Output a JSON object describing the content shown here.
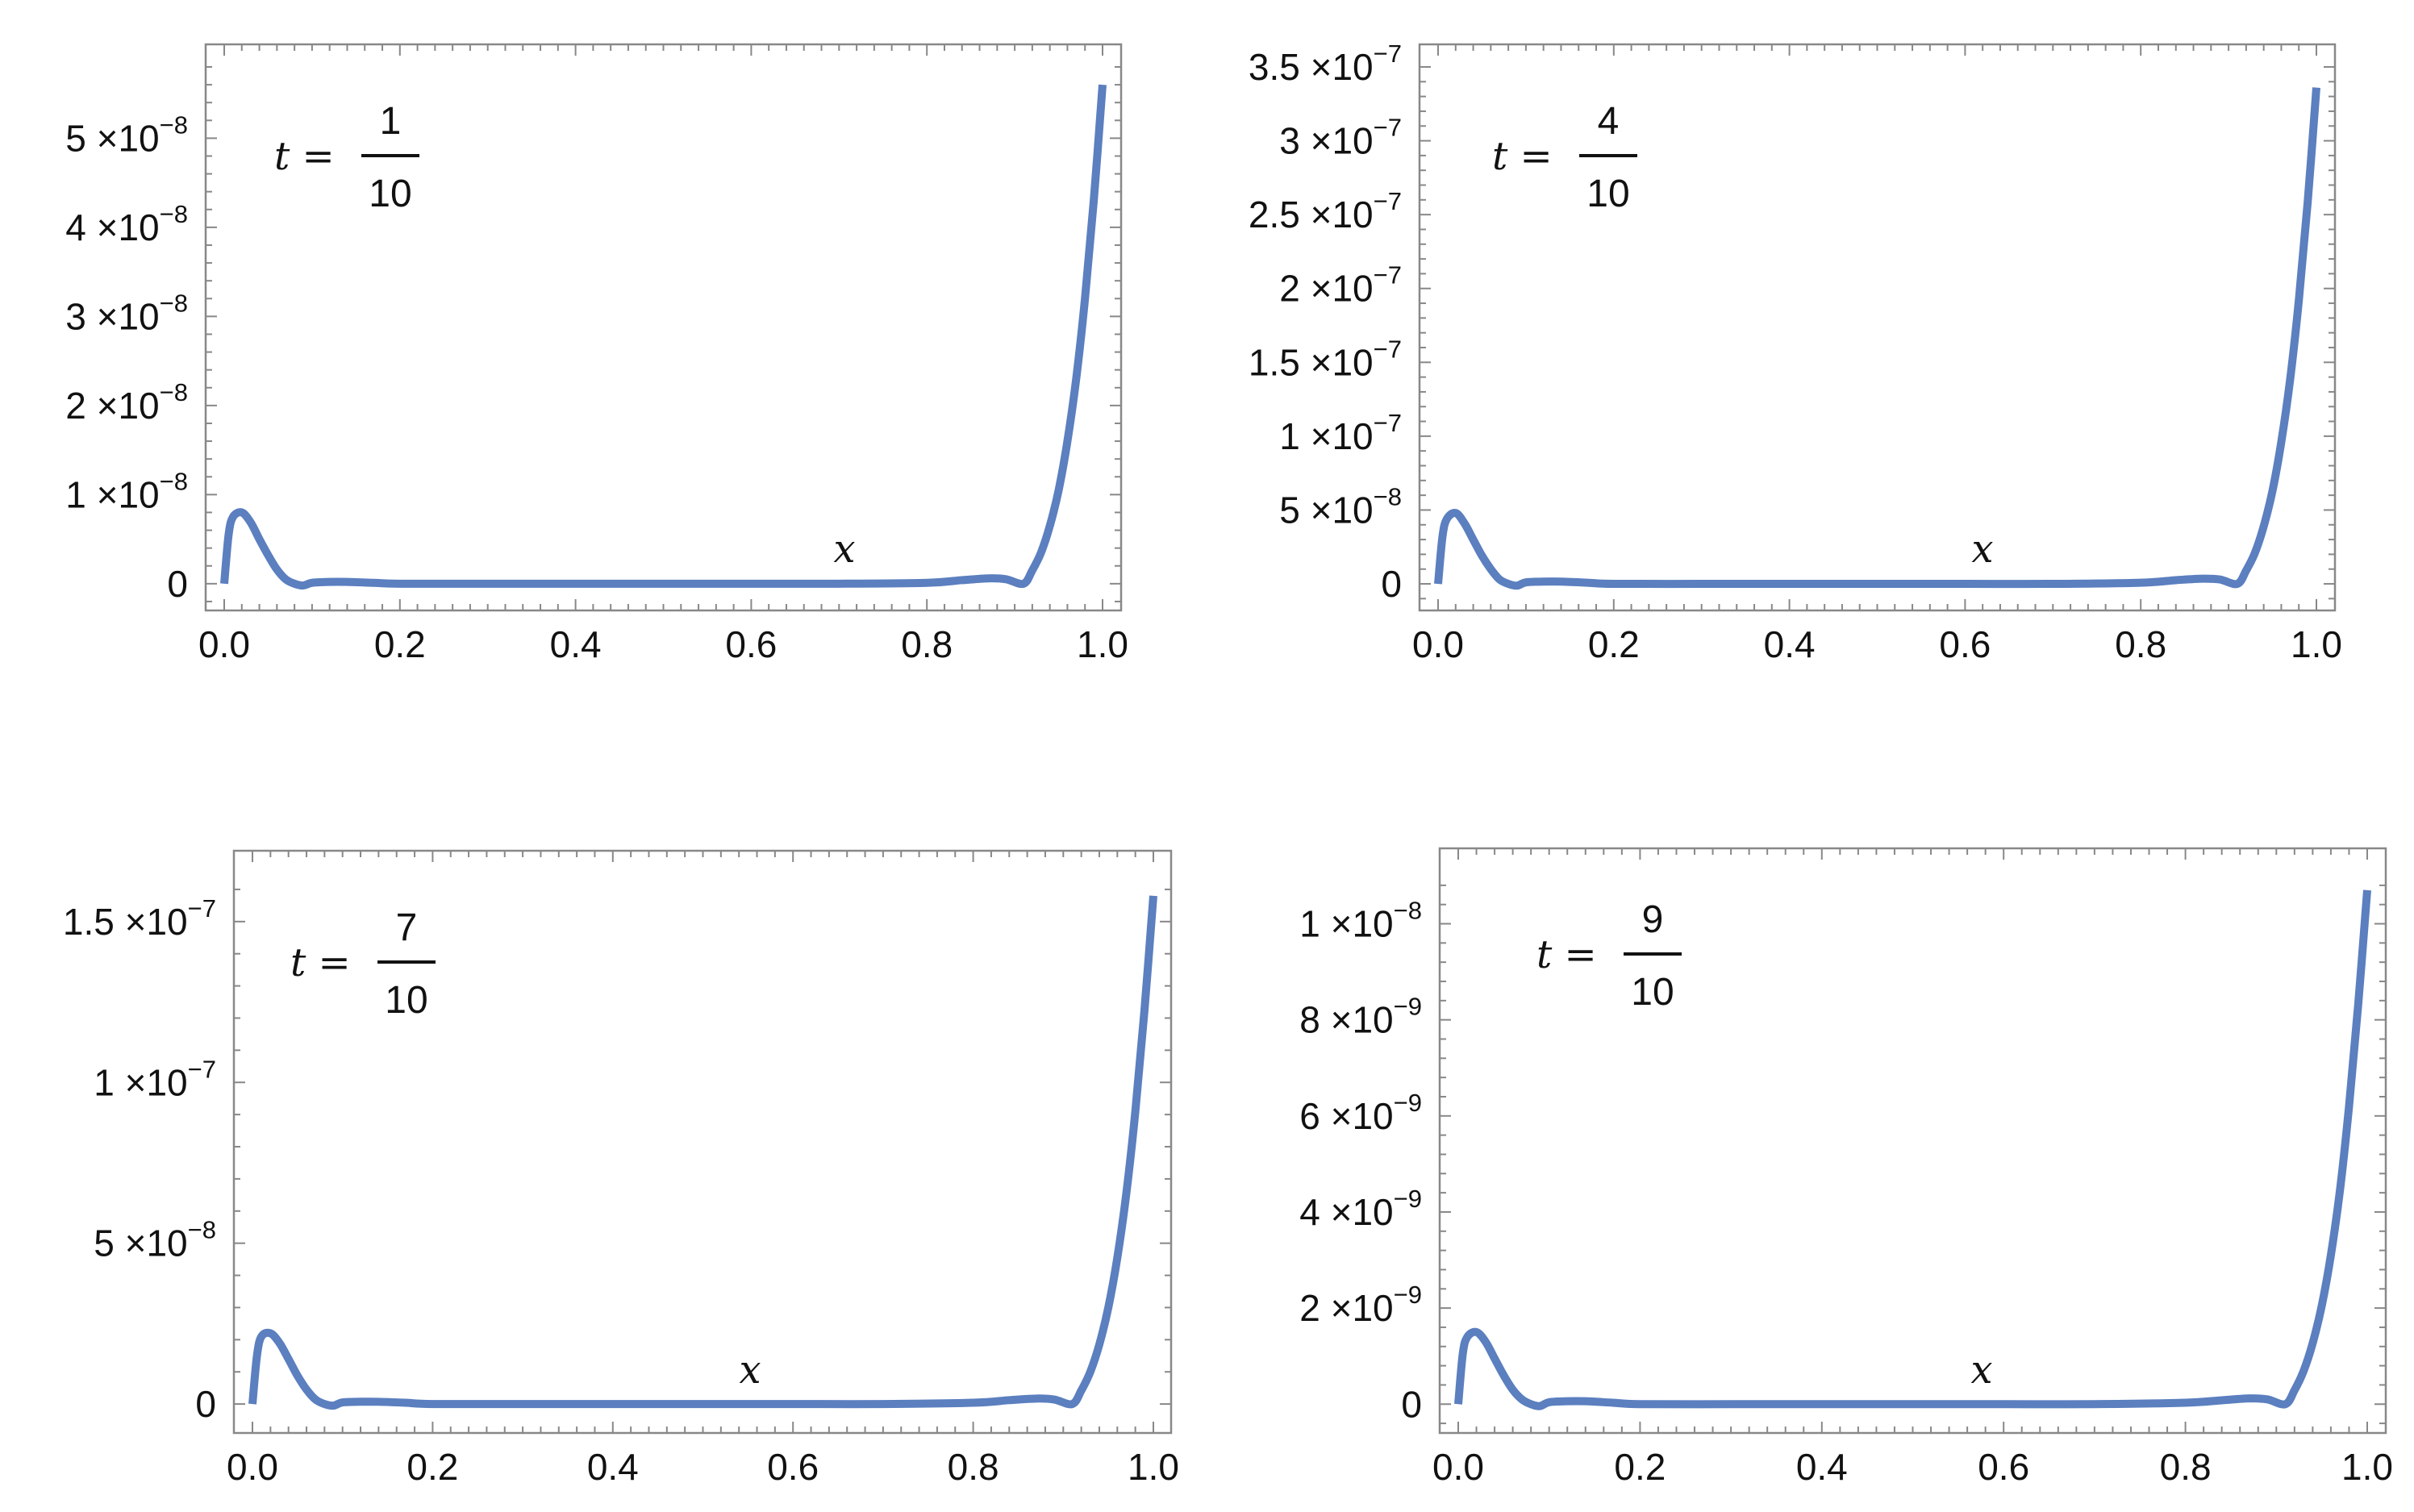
{
  "chart_data": [
    {
      "type": "line",
      "annotation": {
        "var": "t",
        "eq": "=",
        "num": "1",
        "den": "10"
      },
      "xlabel": "x",
      "xlim": [
        0,
        1
      ],
      "ylim": [
        -3e-09,
        5.8e-08
      ],
      "x_ticks": [
        "0.0",
        "0.2",
        "0.4",
        "0.6",
        "0.8",
        "1.0"
      ],
      "y_ticks": [
        {
          "value": 0,
          "mantissa": "0",
          "times": "",
          "base": "",
          "exp": ""
        },
        {
          "value": 1e-08,
          "mantissa": "1",
          "times": "×",
          "base": "10",
          "exp": "−8"
        },
        {
          "value": 2e-08,
          "mantissa": "2",
          "times": "×",
          "base": "10",
          "exp": "−8"
        },
        {
          "value": 3e-08,
          "mantissa": "3",
          "times": "×",
          "base": "10",
          "exp": "−8"
        },
        {
          "value": 4e-08,
          "mantissa": "4",
          "times": "×",
          "base": "10",
          "exp": "−8"
        },
        {
          "value": 5e-08,
          "mantissa": "5",
          "times": "×",
          "base": "10",
          "exp": "−8"
        }
      ],
      "series": [
        {
          "color": "#5b7fbf",
          "x": [
            0,
            0.005,
            0.01,
            0.02,
            0.03,
            0.04,
            0.05,
            0.06,
            0.07,
            0.08,
            0.09,
            0.1,
            0.12,
            0.14,
            0.17,
            0.2,
            0.3,
            0.4,
            0.5,
            0.6,
            0.7,
            0.8,
            0.84,
            0.87,
            0.89,
            0.91,
            0.92,
            0.93,
            0.94,
            0.95,
            0.96,
            0.97,
            0.98,
            0.99,
            1.0
          ],
          "y": [
            0,
            5.5e-09,
            7.5e-09,
            8e-09,
            6.9e-09,
            5e-09,
            3.2e-09,
            1.6e-09,
            5e-10,
            0,
            -2e-10,
            1e-10,
            2e-10,
            2e-10,
            1e-10,
            0,
            0,
            0,
            0,
            0,
            0,
            1e-10,
            4e-10,
            6e-10,
            5e-10,
            0,
            1.5e-09,
            3.5e-09,
            6.5e-09,
            1.05e-08,
            1.6e-08,
            2.3e-08,
            3.2e-08,
            4.3e-08,
            5.6e-08
          ]
        }
      ]
    },
    {
      "type": "line",
      "annotation": {
        "var": "t",
        "eq": "=",
        "num": "4",
        "den": "10"
      },
      "xlabel": "x",
      "xlim": [
        0,
        1
      ],
      "ylim": [
        -1.8e-08,
        3.5e-07
      ],
      "x_ticks": [
        "0.0",
        "0.2",
        "0.4",
        "0.6",
        "0.8",
        "1.0"
      ],
      "y_ticks": [
        {
          "value": 0,
          "mantissa": "0",
          "times": "",
          "base": "",
          "exp": ""
        },
        {
          "value": 5e-08,
          "mantissa": "5",
          "times": "×",
          "base": "10",
          "exp": "−8"
        },
        {
          "value": 1e-07,
          "mantissa": "1",
          "times": "×",
          "base": "10",
          "exp": "−7"
        },
        {
          "value": 1.5e-07,
          "mantissa": "1.5",
          "times": "×",
          "base": "10",
          "exp": "−7"
        },
        {
          "value": 2e-07,
          "mantissa": "2",
          "times": "×",
          "base": "10",
          "exp": "−7"
        },
        {
          "value": 2.5e-07,
          "mantissa": "2.5",
          "times": "×",
          "base": "10",
          "exp": "−7"
        },
        {
          "value": 3e-07,
          "mantissa": "3",
          "times": "×",
          "base": "10",
          "exp": "−7"
        },
        {
          "value": 3.5e-07,
          "mantissa": "3.5",
          "times": "×",
          "base": "10",
          "exp": "−7"
        }
      ],
      "series": [
        {
          "color": "#5b7fbf",
          "x": [
            0,
            0.005,
            0.01,
            0.02,
            0.03,
            0.04,
            0.05,
            0.06,
            0.07,
            0.08,
            0.09,
            0.1,
            0.12,
            0.14,
            0.17,
            0.2,
            0.3,
            0.4,
            0.5,
            0.6,
            0.7,
            0.8,
            0.84,
            0.87,
            0.89,
            0.91,
            0.92,
            0.93,
            0.94,
            0.95,
            0.96,
            0.97,
            0.98,
            0.99,
            1.0
          ],
          "y": [
            0,
            3.2e-08,
            4.4e-08,
            4.8e-08,
            4.1e-08,
            3e-08,
            1.9e-08,
            1e-08,
            3e-09,
            0,
            -1.2e-09,
            1e-09,
            1.5e-09,
            1.5e-09,
            8e-10,
            0,
            0,
            0,
            0,
            0,
            0,
            8e-10,
            2.5e-09,
            3.5e-09,
            3e-09,
            0,
            9e-09,
            2.1e-08,
            3.9e-08,
            6.3e-08,
            9.6e-08,
            1.38e-07,
            1.92e-07,
            2.58e-07,
            3.36e-07
          ]
        }
      ]
    },
    {
      "type": "line",
      "annotation": {
        "var": "t",
        "eq": "=",
        "num": "7",
        "den": "10"
      },
      "xlabel": "x",
      "xlim": [
        0,
        1
      ],
      "ylim": [
        -9e-09,
        1.65e-07
      ],
      "x_ticks": [
        "0.0",
        "0.2",
        "0.4",
        "0.6",
        "0.8",
        "1.0"
      ],
      "y_ticks": [
        {
          "value": 0,
          "mantissa": "0",
          "times": "",
          "base": "",
          "exp": ""
        },
        {
          "value": 5e-08,
          "mantissa": "5",
          "times": "×",
          "base": "10",
          "exp": "−8"
        },
        {
          "value": 1e-07,
          "mantissa": "1",
          "times": "×",
          "base": "10",
          "exp": "−7"
        },
        {
          "value": 1.5e-07,
          "mantissa": "1.5",
          "times": "×",
          "base": "10",
          "exp": "−7"
        }
      ],
      "series": [
        {
          "color": "#5b7fbf",
          "x": [
            0,
            0.005,
            0.01,
            0.02,
            0.03,
            0.04,
            0.05,
            0.06,
            0.07,
            0.08,
            0.09,
            0.1,
            0.12,
            0.14,
            0.17,
            0.2,
            0.3,
            0.4,
            0.5,
            0.6,
            0.7,
            0.8,
            0.84,
            0.87,
            0.89,
            0.91,
            0.92,
            0.93,
            0.94,
            0.95,
            0.96,
            0.97,
            0.98,
            0.99,
            1.0
          ],
          "y": [
            0,
            1.5e-08,
            2.1e-08,
            2.2e-08,
            1.9e-08,
            1.4e-08,
            8.8e-09,
            4.5e-09,
            1.4e-09,
            0,
            -5e-10,
            5e-10,
            7e-10,
            7e-10,
            4e-10,
            0,
            0,
            0,
            0,
            0,
            0,
            4e-10,
            1.2e-09,
            1.7e-09,
            1.4e-09,
            0,
            4.2e-09,
            1e-08,
            1.85e-08,
            3e-08,
            4.55e-08,
            6.55e-08,
            9.1e-08,
            1.22e-07,
            1.58e-07
          ]
        }
      ]
    },
    {
      "type": "line",
      "annotation": {
        "var": "t",
        "eq": "=",
        "num": "9",
        "den": "10"
      },
      "xlabel": "x",
      "xlim": [
        0,
        1
      ],
      "ylim": [
        -6e-10,
        1.11e-08
      ],
      "x_ticks": [
        "0.0",
        "0.2",
        "0.4",
        "0.6",
        "0.8",
        "1.0"
      ],
      "y_ticks": [
        {
          "value": 0,
          "mantissa": "0",
          "times": "",
          "base": "",
          "exp": ""
        },
        {
          "value": 2e-09,
          "mantissa": "2",
          "times": "×",
          "base": "10",
          "exp": "−9"
        },
        {
          "value": 4e-09,
          "mantissa": "4",
          "times": "×",
          "base": "10",
          "exp": "−9"
        },
        {
          "value": 6e-09,
          "mantissa": "6",
          "times": "×",
          "base": "10",
          "exp": "−9"
        },
        {
          "value": 8e-09,
          "mantissa": "8",
          "times": "×",
          "base": "10",
          "exp": "−9"
        },
        {
          "value": 1e-08,
          "mantissa": "1",
          "times": "×",
          "base": "10",
          "exp": "−8"
        }
      ],
      "series": [
        {
          "color": "#5b7fbf",
          "x": [
            0,
            0.005,
            0.01,
            0.02,
            0.03,
            0.04,
            0.05,
            0.06,
            0.07,
            0.08,
            0.09,
            0.1,
            0.12,
            0.14,
            0.17,
            0.2,
            0.3,
            0.4,
            0.5,
            0.6,
            0.7,
            0.8,
            0.84,
            0.87,
            0.89,
            0.91,
            0.92,
            0.93,
            0.94,
            0.95,
            0.96,
            0.97,
            0.98,
            0.99,
            1.0
          ],
          "y": [
            0,
            1.05e-09,
            1.4e-09,
            1.5e-09,
            1.3e-09,
            9.5e-10,
            6e-10,
            3e-10,
            1e-10,
            0,
            -4e-11,
            4e-11,
            6e-11,
            6e-11,
            3e-11,
            0,
            0,
            0,
            0,
            0,
            0,
            3e-11,
            8e-11,
            1.2e-10,
            1e-10,
            0,
            2.9e-10,
            6.9e-10,
            1.27e-09,
            2.05e-09,
            3.1e-09,
            4.45e-09,
            6.2e-09,
            8.3e-09,
            1.07e-08
          ]
        }
      ]
    }
  ]
}
